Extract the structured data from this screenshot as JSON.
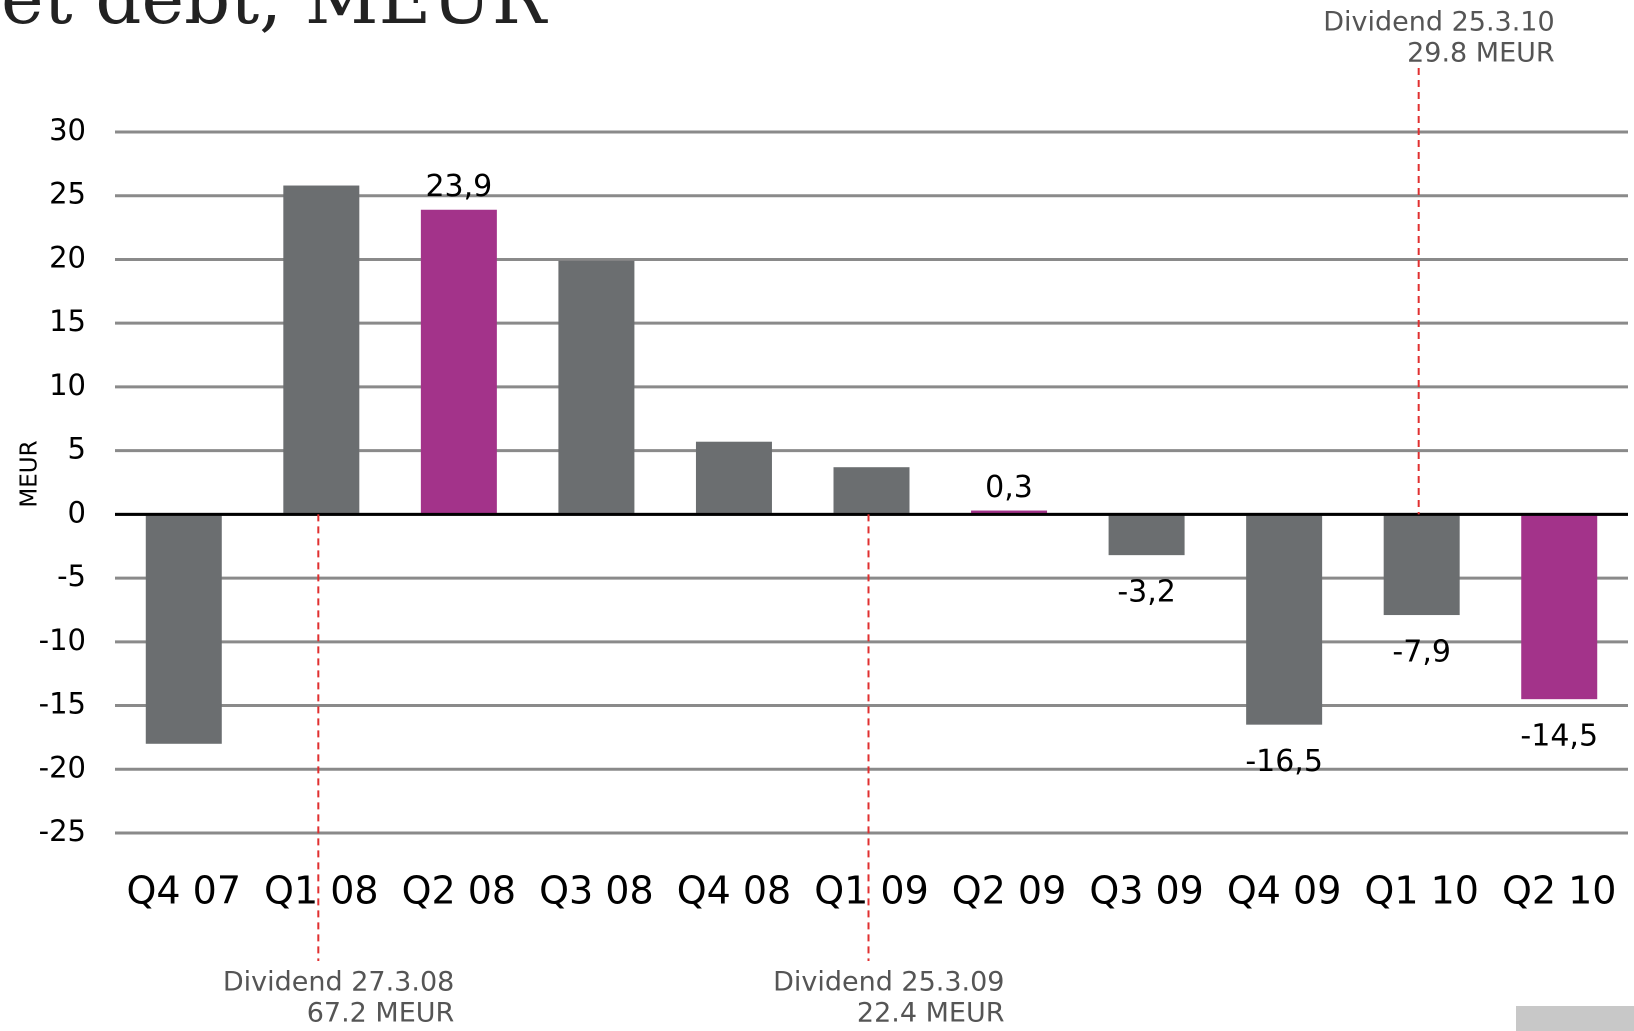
{
  "chart_data": {
    "type": "bar",
    "title": "Net debt, MEUR",
    "y_label": "MEUR",
    "categories": [
      "Q4 07",
      "Q1 08",
      "Q2 08",
      "Q3 08",
      "Q4 08",
      "Q1 09",
      "Q2 09",
      "Q3 09",
      "Q4 09",
      "Q1 10",
      "Q2 10"
    ],
    "values": [
      -18,
      25.8,
      23.9,
      19.9,
      5.7,
      3.7,
      0.3,
      -3.2,
      -16.5,
      -7.9,
      -14.5
    ],
    "value_labels": [
      null,
      null,
      "23,9",
      null,
      null,
      null,
      "0,3",
      "-3,2",
      "-16,5",
      "-7,9",
      "-14,5"
    ],
    "colors": [
      "#6b6e70",
      "#6b6e70",
      "#a3338a",
      "#6b6e70",
      "#6b6e70",
      "#6b6e70",
      "#a3338a",
      "#6b6e70",
      "#6b6e70",
      "#6b6e70",
      "#a3338a"
    ],
    "ylim": [
      -25,
      30
    ],
    "yticks": [
      -25,
      -20,
      -15,
      -10,
      -5,
      0,
      5,
      10,
      15,
      20,
      25,
      30
    ],
    "grid": true,
    "annotations": [
      {
        "category": "Q1 08",
        "position": "bottom",
        "lines": [
          "Dividend 27.3.08",
          "67.2 MEUR"
        ]
      },
      {
        "category": "Q1 09",
        "position": "bottom",
        "lines": [
          "Dividend 25.3.09",
          "22.4 MEUR"
        ]
      },
      {
        "category": "Q1 10",
        "position": "top",
        "lines": [
          "Dividend 25.3.10",
          "29.8 MEUR"
        ]
      }
    ]
  }
}
